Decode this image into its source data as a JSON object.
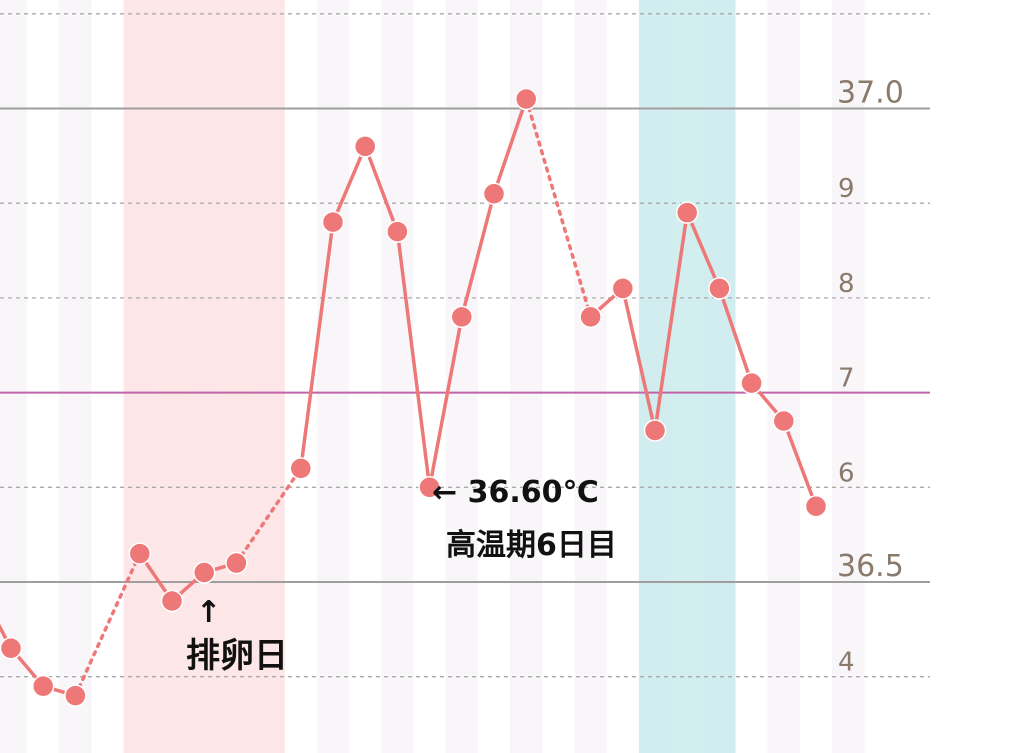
{
  "chart_data": {
    "type": "line",
    "title": "",
    "xlabel": "",
    "ylabel": "",
    "ylim": [
      36.39,
      37.1
    ],
    "ticks": [
      {
        "value": 36.4,
        "label": "4",
        "major": false
      },
      {
        "value": 36.5,
        "label": "36.5",
        "major": true
      },
      {
        "value": 36.6,
        "label": "6",
        "major": false
      },
      {
        "value": 36.7,
        "label": "7",
        "major": false,
        "coverline": true
      },
      {
        "value": 36.8,
        "label": "8",
        "major": false
      },
      {
        "value": 36.9,
        "label": "9",
        "major": false
      },
      {
        "value": 37.0,
        "label": "37.0",
        "major": true
      }
    ],
    "coverline_value": 36.7,
    "bands": [
      {
        "from": 4,
        "to": 8,
        "color": "#fde4e4"
      },
      {
        "from": 20,
        "to": 22,
        "color": "#cdeced"
      }
    ],
    "series": [
      {
        "values": [
          36.43,
          36.39,
          36.38,
          null,
          36.53,
          36.48,
          36.51,
          36.52,
          null,
          36.62,
          36.88,
          36.96,
          36.87,
          36.6,
          36.78,
          36.91,
          37.01,
          null,
          36.78,
          36.81,
          36.66,
          36.89,
          36.81,
          36.71,
          36.67,
          36.58
        ],
        "color": "#ee7878"
      }
    ],
    "annotations": [
      {
        "text": "← 36.60℃",
        "day": 13
      },
      {
        "text": "高温期6日目",
        "day": 13
      },
      {
        "text": "↑",
        "day": 7
      },
      {
        "text": "排卵日",
        "day": 7
      }
    ]
  }
}
